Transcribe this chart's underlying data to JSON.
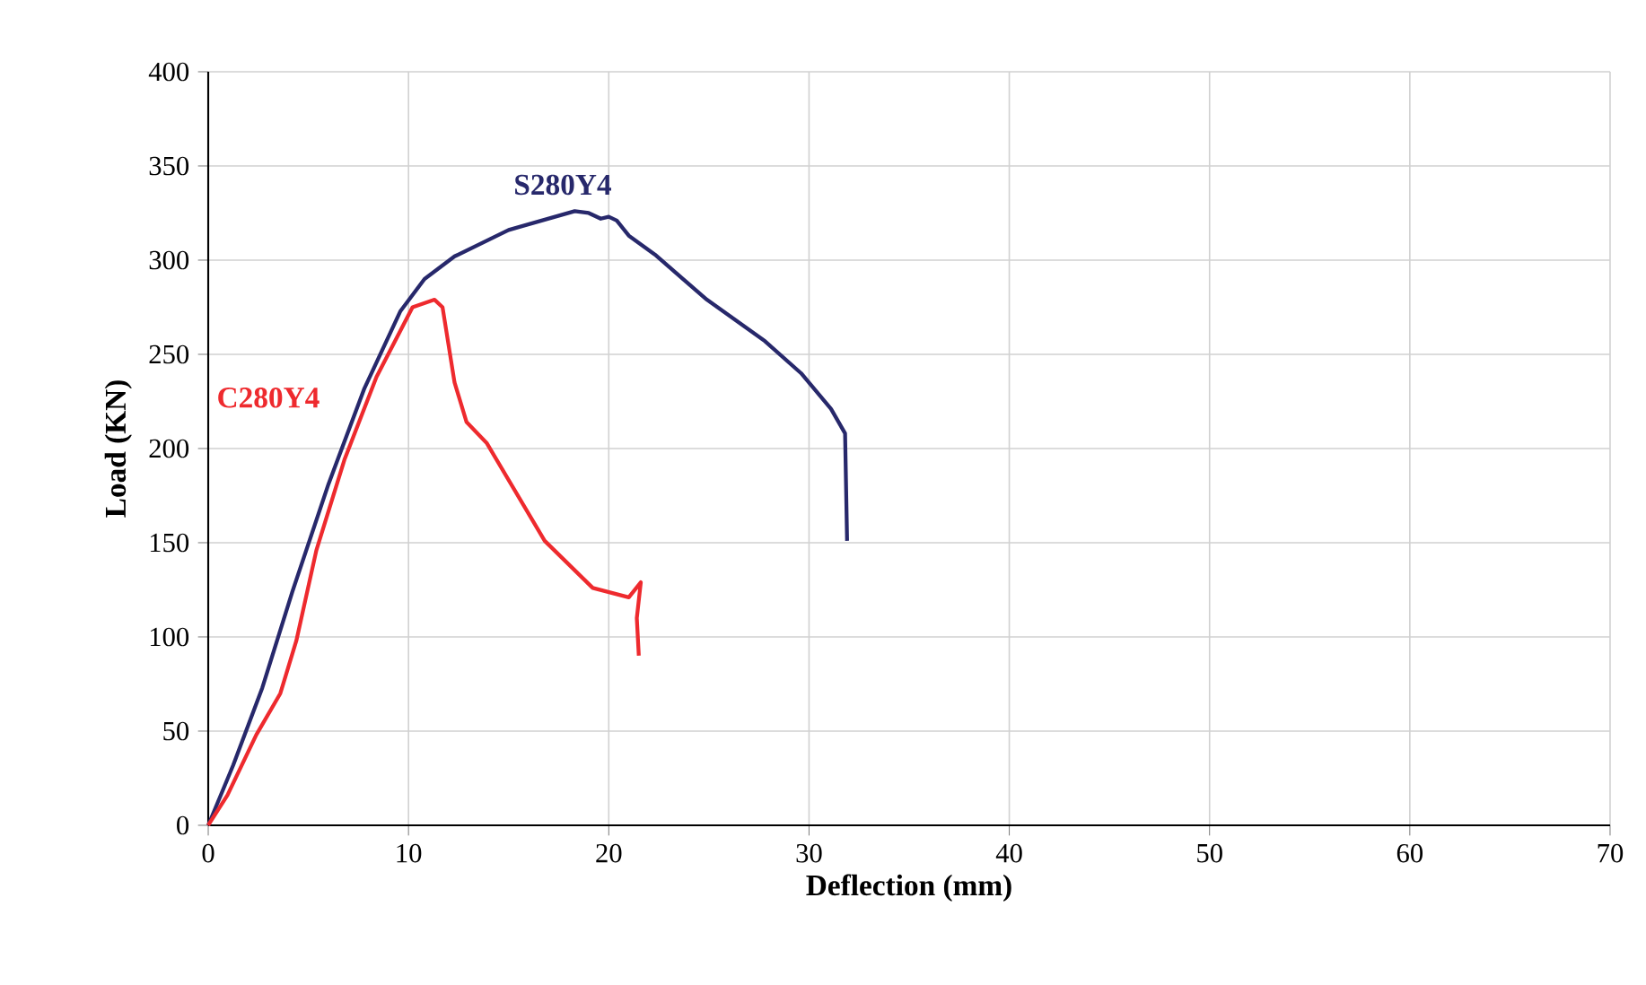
{
  "chart_data": {
    "type": "line",
    "xlabel": "Deflection (mm)",
    "ylabel": "Load (KN)",
    "xlim": [
      0,
      70
    ],
    "ylim": [
      0,
      400
    ],
    "xticks": [
      0,
      10,
      20,
      30,
      40,
      50,
      60,
      70
    ],
    "yticks": [
      0,
      50,
      100,
      150,
      200,
      250,
      300,
      350,
      400
    ],
    "grid": true,
    "line_style": "solid",
    "series": [
      {
        "name": "S280Y4",
        "color": "#27286b",
        "x": [
          0,
          1.25,
          2.7,
          4.2,
          6.0,
          7.8,
          9.6,
          10.8,
          12.3,
          15.0,
          18.3,
          19.0,
          19.6,
          20.0,
          20.4,
          21.0,
          22.3,
          24.9,
          27.8,
          29.6,
          31.1,
          31.8,
          31.9
        ],
        "values": [
          0,
          32,
          73,
          124,
          181,
          232,
          273,
          290,
          302,
          316,
          326,
          325,
          322,
          323,
          321,
          313,
          303,
          279,
          257,
          240,
          221,
          208,
          151
        ]
      },
      {
        "name": "C280Y4",
        "color": "#ee2a2e",
        "x": [
          0,
          0.96,
          2.4,
          3.6,
          4.4,
          5.4,
          6.8,
          8.4,
          10.2,
          11.3,
          11.7,
          12.3,
          12.9,
          13.9,
          16.8,
          19.2,
          21.0,
          21.6,
          21.4,
          21.5
        ],
        "values": [
          0,
          16,
          48,
          70,
          98,
          146,
          194,
          238,
          275,
          279,
          275,
          235,
          214,
          203,
          151,
          126,
          121,
          129,
          110,
          90
        ]
      }
    ]
  }
}
